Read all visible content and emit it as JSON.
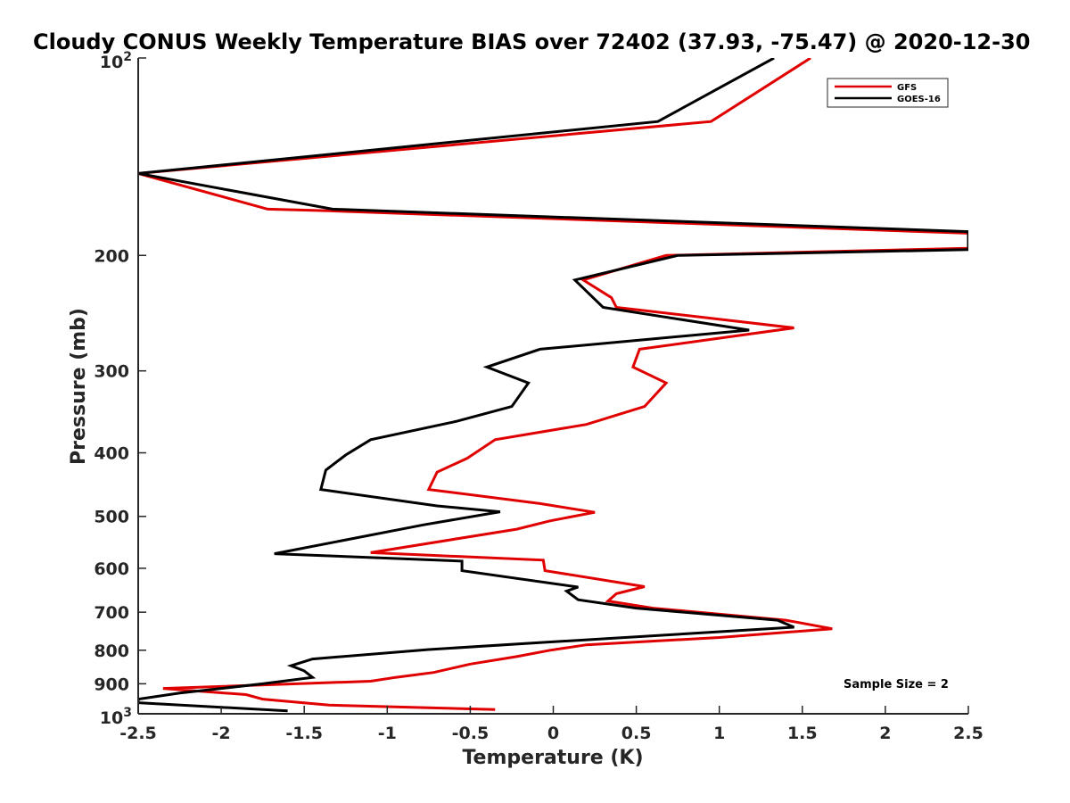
{
  "chart_data": {
    "type": "line",
    "title": "Cloudy CONUS Weekly Temperature BIAS over 72402 (37.93, -75.47) @ 2020-12-30",
    "xlabel": "Temperature (K)",
    "ylabel": "Pressure (mb)",
    "xlim": [
      -2.5,
      2.5
    ],
    "ylim": [
      100,
      1000
    ],
    "yscale": "log",
    "y_reversed": true,
    "grid": false,
    "legend_position": "top-right",
    "xticks": [
      "-2.5",
      "-2",
      "-1.5",
      "-1",
      "-0.5",
      "0",
      "0.5",
      "1",
      "1.5",
      "2",
      "2.5"
    ],
    "yticks": [
      {
        "value": 100,
        "label": "10",
        "sup": "2"
      },
      {
        "value": 200,
        "label": "200"
      },
      {
        "value": 300,
        "label": "300"
      },
      {
        "value": 400,
        "label": "400"
      },
      {
        "value": 500,
        "label": "500"
      },
      {
        "value": 600,
        "label": "600"
      },
      {
        "value": 700,
        "label": "700"
      },
      {
        "value": 800,
        "label": "800"
      },
      {
        "value": 900,
        "label": "900"
      },
      {
        "value": 1000,
        "label": "10",
        "sup": "3"
      }
    ],
    "annotation": "Sample Size = 2",
    "series": [
      {
        "name": "GFS",
        "color": "#e00000",
        "points": [
          [
            1.55,
            100
          ],
          [
            0.95,
            125
          ],
          [
            -2.5,
            150
          ],
          [
            -1.72,
            170
          ],
          [
            -1.35,
            171
          ],
          [
            2.5,
            185
          ],
          [
            2.5,
            195
          ],
          [
            0.68,
            200
          ],
          [
            0.18,
            218
          ],
          [
            0.35,
            232
          ],
          [
            0.38,
            240
          ],
          [
            1.45,
            258
          ],
          [
            0.52,
            278
          ],
          [
            0.48,
            296
          ],
          [
            0.68,
            313
          ],
          [
            0.55,
            340
          ],
          [
            0.2,
            362
          ],
          [
            -0.35,
            382
          ],
          [
            -0.52,
            408
          ],
          [
            -0.7,
            428
          ],
          [
            -0.75,
            455
          ],
          [
            -0.08,
            478
          ],
          [
            0.25,
            493
          ],
          [
            -0.02,
            508
          ],
          [
            -0.22,
            523
          ],
          [
            -1.1,
            568
          ],
          [
            -0.06,
            583
          ],
          [
            -0.05,
            605
          ],
          [
            0.55,
            640
          ],
          [
            0.38,
            656
          ],
          [
            0.33,
            673
          ],
          [
            0.6,
            690
          ],
          [
            1.4,
            720
          ],
          [
            1.68,
            742
          ],
          [
            1.0,
            765
          ],
          [
            0.2,
            785
          ],
          [
            -0.02,
            800
          ],
          [
            -0.22,
            818
          ],
          [
            -0.5,
            840
          ],
          [
            -0.72,
            865
          ],
          [
            -0.95,
            880
          ],
          [
            -1.1,
            892
          ],
          [
            -2.35,
            915
          ],
          [
            -1.85,
            935
          ],
          [
            -1.75,
            950
          ],
          [
            -1.35,
            970
          ],
          [
            -0.35,
            985
          ]
        ]
      },
      {
        "name": "GOES-16",
        "color": "#000000",
        "points": [
          [
            1.33,
            100
          ],
          [
            0.63,
            125
          ],
          [
            -2.5,
            150
          ],
          [
            -1.33,
            170
          ],
          [
            2.5,
            184
          ],
          [
            2.5,
            196
          ],
          [
            0.75,
            200
          ],
          [
            0.13,
            218
          ],
          [
            0.3,
            240
          ],
          [
            1.18,
            260
          ],
          [
            -0.08,
            278
          ],
          [
            -0.4,
            296
          ],
          [
            -0.15,
            313
          ],
          [
            -0.25,
            340
          ],
          [
            -0.58,
            358
          ],
          [
            -1.1,
            382
          ],
          [
            -1.25,
            403
          ],
          [
            -1.37,
            425
          ],
          [
            -1.4,
            455
          ],
          [
            -0.7,
            482
          ],
          [
            -0.32,
            492
          ],
          [
            -0.78,
            515
          ],
          [
            -1.68,
            570
          ],
          [
            -0.55,
            585
          ],
          [
            -0.55,
            605
          ],
          [
            0.15,
            641
          ],
          [
            0.08,
            650
          ],
          [
            0.15,
            670
          ],
          [
            0.5,
            690
          ],
          [
            1.35,
            720
          ],
          [
            1.45,
            738
          ],
          [
            -0.05,
            778
          ],
          [
            -0.75,
            798
          ],
          [
            -1.45,
            825
          ],
          [
            -1.58,
            845
          ],
          [
            -1.5,
            860
          ],
          [
            -1.45,
            880
          ],
          [
            -1.75,
            900
          ],
          [
            -2.25,
            930
          ],
          [
            -2.5,
            950
          ],
          [
            -2.5,
            962
          ],
          [
            -1.6,
            990
          ]
        ]
      }
    ]
  }
}
